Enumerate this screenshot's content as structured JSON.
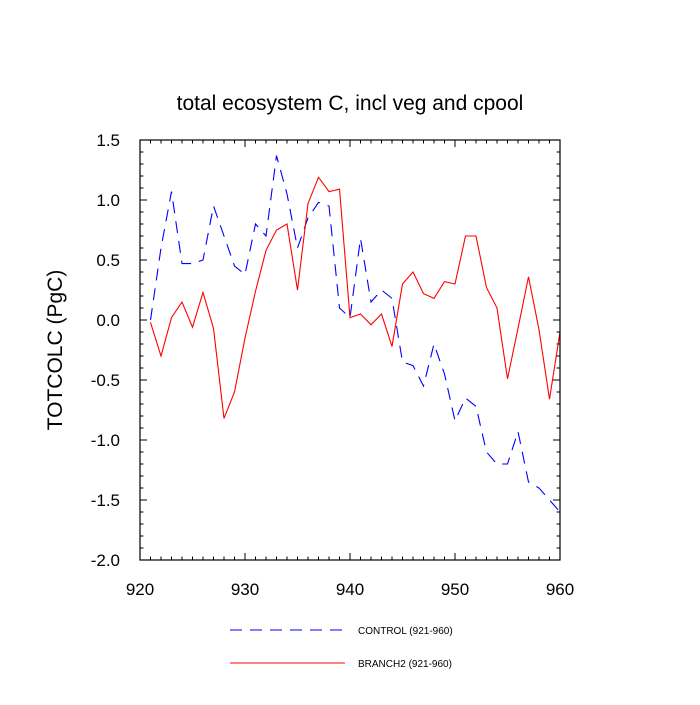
{
  "chart_data": {
    "type": "line",
    "title": "total ecosystem C, incl veg and cpool",
    "xlabel": "",
    "ylabel": "TOTCOLC  (PgC)",
    "xlim": [
      920,
      960
    ],
    "ylim": [
      -2.0,
      1.5
    ],
    "xticks": [
      920,
      930,
      940,
      950,
      960
    ],
    "xtick_labels": [
      "920",
      "930",
      "940",
      "950",
      "960"
    ],
    "yticks": [
      -2.0,
      -1.5,
      -1.0,
      -0.5,
      0.0,
      0.5,
      1.0,
      1.5
    ],
    "ytick_labels": [
      "-2.0",
      "-1.5",
      "-1.0",
      "-0.5",
      "0.0",
      "0.5",
      "1.0",
      "1.5"
    ],
    "grid": false,
    "legend_position": "bottom",
    "series": [
      {
        "name": "CONTROL (921-960)",
        "color": "#0000ff",
        "style": "dashed",
        "x": [
          921,
          922,
          923,
          924,
          925,
          926,
          927,
          928,
          929,
          930,
          931,
          932,
          933,
          934,
          935,
          936,
          937,
          938,
          939,
          940,
          941,
          942,
          943,
          944,
          945,
          946,
          947,
          948,
          949,
          950,
          951,
          952,
          953,
          954,
          955,
          956,
          957,
          958,
          959,
          960
        ],
        "values": [
          0.0,
          0.6,
          1.07,
          0.47,
          0.47,
          0.5,
          0.95,
          0.7,
          0.45,
          0.38,
          0.8,
          0.7,
          1.37,
          1.05,
          0.6,
          0.85,
          0.98,
          0.95,
          0.1,
          0.02,
          0.68,
          0.15,
          0.25,
          0.18,
          -0.35,
          -0.38,
          -0.55,
          -0.2,
          -0.45,
          -0.84,
          -0.65,
          -0.72,
          -1.1,
          -1.2,
          -1.2,
          -0.93,
          -1.35,
          -1.4,
          -1.5,
          -1.6
        ]
      },
      {
        "name": "BRANCH2 (921-960)",
        "color": "#ff0000",
        "style": "solid",
        "x": [
          921,
          922,
          923,
          924,
          925,
          926,
          927,
          928,
          929,
          930,
          931,
          932,
          933,
          934,
          935,
          936,
          937,
          938,
          939,
          940,
          941,
          942,
          943,
          944,
          945,
          946,
          947,
          948,
          949,
          950,
          951,
          952,
          953,
          954,
          955,
          956,
          957,
          958,
          959,
          960
        ],
        "values": [
          -0.02,
          -0.3,
          0.02,
          0.15,
          -0.06,
          0.23,
          -0.07,
          -0.82,
          -0.6,
          -0.15,
          0.24,
          0.58,
          0.75,
          0.8,
          0.25,
          0.97,
          1.19,
          1.07,
          1.09,
          0.02,
          0.05,
          -0.04,
          0.05,
          -0.22,
          0.3,
          0.4,
          0.22,
          0.18,
          0.32,
          0.3,
          0.7,
          0.7,
          0.27,
          0.1,
          -0.49,
          -0.07,
          0.36,
          -0.08,
          -0.66,
          -0.1
        ]
      }
    ]
  }
}
